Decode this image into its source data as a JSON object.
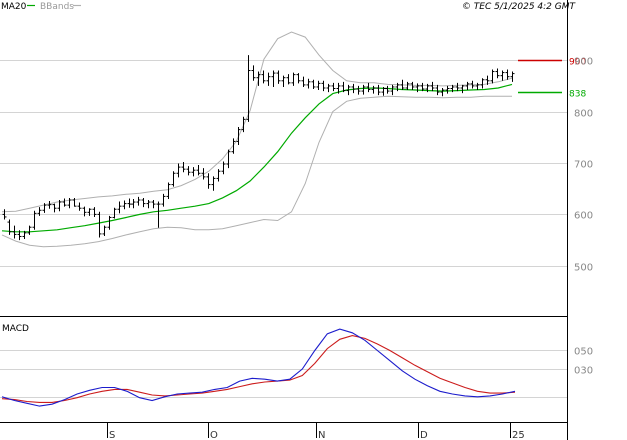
{
  "header": {
    "legend_ma": "MA20",
    "legend_bb": "BBands",
    "copyright": "© TEC 5/1/2025 4:2 GMT"
  },
  "markers": {
    "upper": {
      "label": "900",
      "value": 900,
      "color": "#cc0000"
    },
    "lower": {
      "label": "838",
      "value": 838,
      "color": "#00aa00"
    }
  },
  "colors": {
    "price_bar": "#000000",
    "ma20": "#00aa00",
    "bbands": "#b0b0b0",
    "macd": "#1c1ccc",
    "signal": "#cc1c1c",
    "grid": "#aaaaaa"
  },
  "chart_data": [
    {
      "type": "bar",
      "title": "",
      "style": "OHLC price bars with 20-period moving average and Bollinger Bands",
      "ylim": [
        410,
        990
      ],
      "y_ticks": [
        500,
        600,
        700,
        800,
        900
      ],
      "y_tick_labels": [
        "500",
        "600",
        "700",
        "800",
        "900"
      ],
      "x_ticks": [
        "S",
        "O",
        "N",
        "D",
        "25"
      ],
      "grid": true,
      "legend": "top-left",
      "series": [
        {
          "name": "MA20",
          "values": [
            568,
            566,
            566,
            568,
            570,
            574,
            578,
            583,
            588,
            594,
            600,
            605,
            608,
            612,
            616,
            621,
            632,
            646,
            665,
            692,
            722,
            758,
            788,
            815,
            835,
            842,
            845,
            846,
            845,
            843,
            842,
            841,
            840,
            841,
            842,
            843,
            846,
            853
          ]
        },
        {
          "name": "BBands",
          "upper": [
            605,
            606,
            612,
            618,
            624,
            628,
            631,
            634,
            636,
            639,
            641,
            645,
            648,
            656,
            668,
            684,
            708,
            742,
            802,
            902,
            942,
            955,
            945,
            910,
            880,
            860,
            856,
            856,
            853,
            852,
            851,
            851,
            850,
            851,
            852,
            853,
            858,
            865
          ],
          "lower": [
            560,
            548,
            540,
            537,
            538,
            540,
            543,
            547,
            553,
            560,
            566,
            572,
            575,
            574,
            570,
            570,
            572,
            578,
            584,
            590,
            588,
            605,
            660,
            740,
            800,
            820,
            826,
            828,
            830,
            829,
            828,
            828,
            827,
            828,
            828,
            830,
            830,
            830
          ]
        }
      ],
      "ohlc": [
        [
          600,
          610,
          590,
          595
        ],
        [
          585,
          590,
          560,
          566
        ],
        [
          566,
          578,
          553,
          561
        ],
        [
          561,
          569,
          550,
          557
        ],
        [
          557,
          568,
          552,
          564
        ],
        [
          564,
          578,
          560,
          575
        ],
        [
          575,
          607,
          570,
          602
        ],
        [
          602,
          614,
          597,
          608
        ],
        [
          608,
          622,
          603,
          618
        ],
        [
          618,
          626,
          611,
          619
        ],
        [
          619,
          621,
          604,
          612
        ],
        [
          612,
          628,
          606,
          624
        ],
        [
          624,
          631,
          615,
          618
        ],
        [
          618,
          632,
          612,
          628
        ],
        [
          628,
          632,
          615,
          616
        ],
        [
          616,
          623,
          607,
          612
        ],
        [
          612,
          615,
          596,
          604
        ],
        [
          604,
          612,
          597,
          610
        ],
        [
          610,
          614,
          595,
          600
        ],
        [
          600,
          605,
          555,
          562
        ],
        [
          562,
          578,
          558,
          575
        ],
        [
          575,
          597,
          570,
          594
        ],
        [
          594,
          613,
          592,
          610
        ],
        [
          610,
          625,
          602,
          616
        ],
        [
          616,
          627,
          610,
          621
        ],
        [
          621,
          631,
          613,
          620
        ],
        [
          620,
          630,
          612,
          624
        ],
        [
          624,
          634,
          617,
          628
        ],
        [
          628,
          632,
          614,
          621
        ],
        [
          621,
          628,
          612,
          624
        ],
        [
          624,
          628,
          612,
          620
        ],
        [
          620,
          625,
          574,
          620
        ],
        [
          620,
          640,
          615,
          635
        ],
        [
          635,
          662,
          630,
          658
        ],
        [
          658,
          684,
          654,
          680
        ],
        [
          680,
          699,
          672,
          692
        ],
        [
          692,
          702,
          682,
          688
        ],
        [
          688,
          694,
          676,
          682
        ],
        [
          682,
          692,
          674,
          686
        ],
        [
          686,
          696,
          676,
          680
        ],
        [
          680,
          690,
          668,
          673
        ],
        [
          673,
          680,
          650,
          658
        ],
        [
          658,
          674,
          646,
          670
        ],
        [
          670,
          688,
          664,
          684
        ],
        [
          684,
          703,
          678,
          698
        ],
        [
          698,
          726,
          690,
          722
        ],
        [
          722,
          748,
          718,
          742
        ],
        [
          742,
          770,
          735,
          765
        ],
        [
          765,
          790,
          760,
          785
        ],
        [
          785,
          910,
          780,
          880
        ],
        [
          880,
          890,
          860,
          866
        ],
        [
          866,
          878,
          850,
          872
        ],
        [
          872,
          880,
          855,
          860
        ],
        [
          860,
          876,
          850,
          868
        ],
        [
          868,
          880,
          848,
          875
        ],
        [
          875,
          880,
          854,
          860
        ],
        [
          860,
          870,
          848,
          866
        ],
        [
          866,
          873,
          853,
          856
        ],
        [
          856,
          876,
          850,
          872
        ],
        [
          872,
          875,
          855,
          860
        ],
        [
          860,
          868,
          848,
          852
        ],
        [
          852,
          864,
          845,
          858
        ],
        [
          858,
          862,
          844,
          848
        ],
        [
          848,
          860,
          842,
          855
        ],
        [
          855,
          860,
          840,
          846
        ],
        [
          846,
          854,
          838,
          850
        ],
        [
          850,
          856,
          840,
          845
        ],
        [
          845,
          856,
          835,
          850
        ],
        [
          850,
          858,
          838,
          841
        ],
        [
          841,
          852,
          832,
          848
        ],
        [
          848,
          854,
          836,
          844
        ],
        [
          844,
          850,
          833,
          840
        ],
        [
          840,
          852,
          833,
          848
        ],
        [
          848,
          856,
          838,
          843
        ],
        [
          843,
          850,
          835,
          846
        ],
        [
          846,
          852,
          832,
          838
        ],
        [
          838,
          848,
          831,
          845
        ],
        [
          845,
          850,
          835,
          840
        ],
        [
          840,
          852,
          832,
          848
        ],
        [
          848,
          856,
          840,
          852
        ],
        [
          852,
          862,
          842,
          846
        ],
        [
          846,
          858,
          842,
          854
        ],
        [
          854,
          858,
          842,
          848
        ],
        [
          848,
          855,
          838,
          850
        ],
        [
          850,
          856,
          840,
          844
        ],
        [
          844,
          854,
          838,
          850
        ],
        [
          850,
          858,
          840,
          846
        ],
        [
          846,
          852,
          832,
          838
        ],
        [
          838,
          846,
          830,
          842
        ],
        [
          842,
          850,
          835,
          845
        ],
        [
          845,
          852,
          838,
          848
        ],
        [
          848,
          856,
          840,
          846
        ],
        [
          846,
          852,
          836,
          850
        ],
        [
          850,
          858,
          842,
          854
        ],
        [
          854,
          860,
          845,
          850
        ],
        [
          850,
          856,
          842,
          852
        ],
        [
          852,
          865,
          845,
          862
        ],
        [
          862,
          870,
          852,
          860
        ],
        [
          860,
          882,
          855,
          878
        ],
        [
          878,
          884,
          865,
          870
        ],
        [
          870,
          880,
          860,
          876
        ],
        [
          876,
          882,
          862,
          868
        ],
        [
          868,
          878,
          858,
          874
        ]
      ]
    },
    {
      "type": "line",
      "title": "MACD",
      "ylim": [
        -25,
        85
      ],
      "y_ticks": [
        30,
        50
      ],
      "y_tick_labels": [
        "030",
        "050"
      ],
      "x_ticks": [
        "S",
        "O",
        "N",
        "D",
        "25"
      ],
      "grid": true,
      "series": [
        {
          "name": "MACD",
          "values": [
            0,
            -4,
            -7,
            -10,
            -8,
            -3,
            3,
            7,
            10,
            10,
            6,
            -1,
            -4,
            0,
            3,
            4,
            5,
            8,
            10,
            17,
            20,
            19,
            17,
            19,
            30,
            50,
            68,
            73,
            69,
            61,
            50,
            39,
            28,
            19,
            12,
            6,
            3,
            1,
            0,
            1,
            3,
            6
          ]
        },
        {
          "name": "Signal",
          "values": [
            -2,
            -3,
            -5,
            -6,
            -6,
            -4,
            -1,
            3,
            6,
            8,
            8,
            5,
            2,
            1,
            2,
            3,
            4,
            6,
            8,
            11,
            14,
            16,
            17,
            18,
            23,
            36,
            52,
            62,
            66,
            63,
            57,
            50,
            42,
            34,
            27,
            20,
            15,
            10,
            6,
            4,
            4,
            5
          ]
        }
      ]
    }
  ]
}
